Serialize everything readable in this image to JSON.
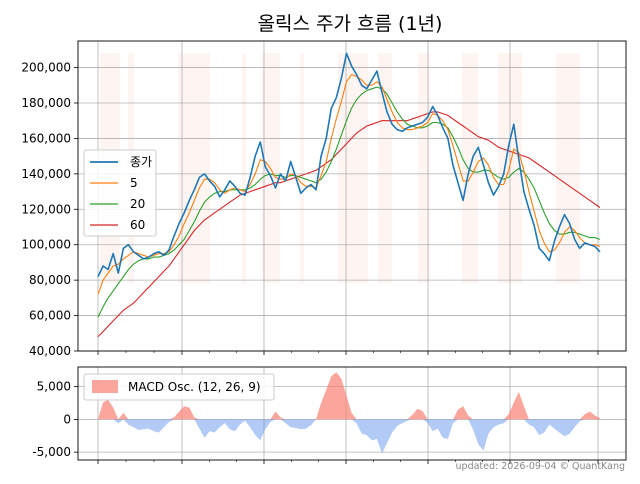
{
  "chart_data": [
    {
      "type": "line",
      "title": "올릭스 주가 흐름 (1년)",
      "xlabel": "",
      "ylabel": "",
      "ylim": [
        40000,
        215000
      ],
      "yticks": [
        "40,000",
        "60,000",
        "80,000",
        "100,000",
        "120,000",
        "140,000",
        "160,000",
        "180,000",
        "200,000"
      ],
      "grid": true,
      "legend_position": "center-left",
      "x_points": 250,
      "series": [
        {
          "name": "종가",
          "color": "#1f77b4",
          "values": [
            82000,
            88000,
            86000,
            95000,
            84000,
            98000,
            100000,
            96000,
            94000,
            92000,
            93000,
            95000,
            96000,
            94000,
            97000,
            105000,
            112000,
            118000,
            125000,
            131000,
            138000,
            140000,
            136000,
            133000,
            127000,
            131000,
            136000,
            133000,
            129000,
            128000,
            138000,
            150000,
            158000,
            144000,
            139000,
            132000,
            140000,
            136000,
            147000,
            138000,
            129000,
            132000,
            134000,
            131000,
            150000,
            160000,
            177000,
            183000,
            194000,
            208000,
            201000,
            196000,
            190000,
            188000,
            193000,
            198000,
            186000,
            175000,
            168000,
            165000,
            164000,
            166000,
            167000,
            168000,
            169000,
            172000,
            178000,
            173000,
            166000,
            160000,
            145000,
            135000,
            125000,
            140000,
            150000,
            155000,
            145000,
            135000,
            128000,
            133000,
            140000,
            156000,
            168000,
            148000,
            130000,
            120000,
            111000,
            98000,
            95000,
            91000,
            102000,
            110000,
            117000,
            112000,
            103000,
            98000,
            101000,
            100000,
            99000,
            96000
          ]
        },
        {
          "name": "5",
          "color": "#ff7f0e",
          "values": [
            72000,
            80000,
            84000,
            88000,
            89000,
            92000,
            94000,
            96000,
            95000,
            94000,
            93000,
            94000,
            95000,
            95000,
            96000,
            100000,
            105000,
            112000,
            118000,
            125000,
            132000,
            137000,
            137000,
            135000,
            131000,
            129000,
            131000,
            132000,
            131000,
            130000,
            134000,
            140000,
            148000,
            147000,
            143000,
            138000,
            137000,
            137000,
            140000,
            139000,
            135000,
            133000,
            133000,
            132000,
            139000,
            147000,
            160000,
            171000,
            181000,
            192000,
            196000,
            195000,
            193000,
            190000,
            190000,
            192000,
            189000,
            182000,
            175000,
            169000,
            166000,
            165000,
            165000,
            166000,
            167000,
            169000,
            174000,
            173000,
            170000,
            165000,
            156000,
            146000,
            136000,
            136000,
            141000,
            147000,
            149000,
            145000,
            138000,
            134000,
            134000,
            142000,
            154000,
            152000,
            142000,
            130000,
            119000,
            108000,
            101000,
            96000,
            97000,
            101000,
            107000,
            110000,
            108000,
            104000,
            101000,
            100000,
            100000,
            99000
          ]
        },
        {
          "name": "20",
          "color": "#2ca02c",
          "values": [
            59000,
            65000,
            70000,
            74000,
            78000,
            82000,
            86000,
            89000,
            91000,
            92000,
            92000,
            93000,
            93000,
            94000,
            95000,
            97000,
            100000,
            103000,
            108000,
            113000,
            119000,
            124000,
            127000,
            129000,
            130000,
            130000,
            131000,
            131000,
            131000,
            131000,
            132000,
            134000,
            137000,
            139000,
            140000,
            139000,
            139000,
            138000,
            139000,
            139000,
            138000,
            137000,
            136000,
            135000,
            137000,
            141000,
            147000,
            154000,
            162000,
            170000,
            177000,
            182000,
            185000,
            187000,
            188000,
            189000,
            188000,
            185000,
            180000,
            175000,
            171000,
            168000,
            167000,
            166000,
            166000,
            167000,
            169000,
            169000,
            168000,
            166000,
            161000,
            155000,
            148000,
            143000,
            141000,
            141000,
            142000,
            142000,
            140000,
            138000,
            137000,
            138000,
            141000,
            143000,
            141000,
            137000,
            132000,
            125000,
            118000,
            112000,
            108000,
            106000,
            106000,
            107000,
            107000,
            106000,
            105000,
            104000,
            104000,
            103000
          ]
        },
        {
          "name": "60",
          "color": "#d62728",
          "values": [
            48000,
            51000,
            54000,
            57000,
            60000,
            63000,
            65000,
            67000,
            70000,
            73000,
            76000,
            79000,
            82000,
            85000,
            88000,
            92000,
            96000,
            100000,
            104000,
            108000,
            111000,
            114000,
            116000,
            118000,
            120000,
            122000,
            124000,
            126000,
            128000,
            129000,
            130000,
            131000,
            132000,
            133000,
            134000,
            135000,
            135000,
            136000,
            137000,
            138000,
            139000,
            140000,
            141000,
            142000,
            144000,
            146000,
            148000,
            151000,
            154000,
            157000,
            160000,
            163000,
            165000,
            167000,
            168000,
            169000,
            170000,
            170000,
            170000,
            170000,
            170000,
            170000,
            171000,
            172000,
            173000,
            174000,
            175000,
            175000,
            174000,
            173000,
            171000,
            169000,
            167000,
            165000,
            163000,
            161000,
            160000,
            159000,
            157000,
            155000,
            154000,
            153000,
            152000,
            151000,
            150000,
            149000,
            147000,
            145000,
            143000,
            141000,
            139000,
            137000,
            135000,
            133000,
            131000,
            129000,
            127000,
            125000,
            123000,
            121000
          ]
        }
      ]
    },
    {
      "type": "bar",
      "title": "",
      "ylim": [
        -6200,
        8000
      ],
      "yticks": [
        "-5,000",
        "0",
        "5,000"
      ],
      "grid": true,
      "legend_position": "top-left",
      "series": [
        {
          "name": "MACD Osc. (12, 26, 9)",
          "positive_color": "#fa8072",
          "negative_color": "#6495ed",
          "values": [
            0,
            2600,
            3000,
            1800,
            -600,
            1000,
            -800,
            -1200,
            -1600,
            -1500,
            -1400,
            -1800,
            -2000,
            -1200,
            -400,
            300,
            1200,
            2000,
            1800,
            300,
            -1400,
            -2800,
            -1800,
            -2000,
            -1200,
            -600,
            -1500,
            -1800,
            -800,
            -200,
            -1200,
            -2400,
            -3200,
            -1500,
            -400,
            1200,
            300,
            -600,
            -1200,
            -1300,
            -1500,
            -1400,
            -900,
            0,
            2500,
            4500,
            6600,
            7200,
            6200,
            3600,
            1000,
            -600,
            -2200,
            -2400,
            -3200,
            -3000,
            -5200,
            -3600,
            -2000,
            -1000,
            -600,
            -200,
            700,
            1600,
            1300,
            -500,
            -1800,
            -1400,
            -2800,
            -3000,
            -600,
            1500,
            2000,
            600,
            -1600,
            -3800,
            -4800,
            -2200,
            -1200,
            -800,
            -600,
            800,
            2600,
            4200,
            2000,
            -800,
            -1200,
            -2400,
            -2000,
            -800,
            -1400,
            -2000,
            -2600,
            -2200,
            -1200,
            -300,
            800,
            1200,
            600,
            200
          ]
        }
      ]
    }
  ],
  "legend_main": [
    {
      "label": "종가",
      "color": "#1f77b4"
    },
    {
      "label": "5",
      "color": "#ff7f0e"
    },
    {
      "label": "20",
      "color": "#2ca02c"
    },
    {
      "label": "60",
      "color": "#d62728"
    }
  ],
  "footer": {
    "updated": "updated: 2026-09-04 © QuantKang"
  }
}
